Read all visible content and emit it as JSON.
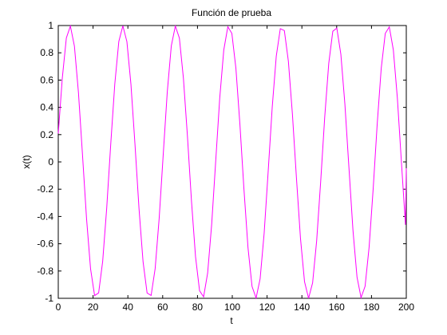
{
  "chart_data": {
    "type": "line",
    "title": "Función de prueba",
    "xlabel": "t",
    "ylabel": "x(t)",
    "xlim": [
      0,
      200
    ],
    "ylim": [
      -1,
      1
    ],
    "xticks": [
      0,
      20,
      40,
      60,
      80,
      100,
      120,
      140,
      160,
      180,
      200
    ],
    "xtick_labels": [
      "0",
      "20",
      "40",
      "60",
      "80",
      "100",
      "120",
      "140",
      "160",
      "180",
      "200"
    ],
    "yticks": [
      -1,
      -0.8,
      -0.6,
      -0.4,
      -0.2,
      0,
      0.2,
      0.4,
      0.6,
      0.8,
      1
    ],
    "ytick_labels": [
      "-1",
      "-0.8",
      "-0.6",
      "-0.4",
      "-0.2",
      "0",
      "0.2",
      "0.4",
      "0.6",
      "0.8",
      "1"
    ],
    "grid": false,
    "line_color": "#ff00ff",
    "series": [
      {
        "x": [
          0,
          2.32,
          4.64,
          6.96,
          9.28,
          11.6,
          13.92,
          16.24,
          18.56,
          20.88,
          23.2,
          25.52,
          27.84,
          30.16,
          32.48,
          34.8,
          37.12,
          39.44,
          41.76,
          44.08,
          46.4,
          48.72,
          51.04,
          53.36,
          55.68,
          58.0,
          60.32,
          62.64,
          64.96,
          67.28,
          69.6,
          71.92,
          74.24,
          76.56,
          78.88,
          81.2,
          83.52,
          85.84,
          88.16,
          90.48,
          92.8,
          95.12,
          97.44,
          99.76,
          102.08,
          104.4,
          106.72,
          109.04,
          111.36,
          113.68,
          116.0,
          118.32,
          120.64,
          122.96,
          125.28,
          127.6,
          129.92,
          132.24,
          134.56,
          136.88,
          139.2,
          141.52,
          143.84,
          146.16,
          148.48,
          150.8,
          153.12,
          155.44,
          157.76,
          160.08,
          162.4,
          164.72,
          167.04,
          169.36,
          171.68,
          174.0,
          176.32,
          178.64,
          180.96,
          183.28,
          185.6,
          187.92,
          190.24,
          192.56,
          194.88,
          197.2,
          199.52,
          200
        ],
        "y": [
          0.208,
          0.615,
          0.909,
          0.996,
          0.849,
          0.508,
          0.052,
          -0.414,
          -0.784,
          -0.98,
          -0.96,
          -0.729,
          -0.338,
          0.132,
          0.571,
          0.883,
          0.998,
          0.882,
          0.569,
          0.13,
          -0.342,
          -0.731,
          -0.961,
          -0.979,
          -0.782,
          -0.411,
          0.055,
          0.513,
          0.851,
          0.996,
          0.908,
          0.613,
          0.187,
          -0.288,
          -0.695,
          -0.945,
          -0.989,
          -0.815,
          -0.457,
          0.007,
          0.469,
          0.821,
          0.991,
          0.942,
          0.687,
          0.273,
          -0.203,
          -0.63,
          -0.913,
          -0.998,
          -0.857,
          -0.522,
          -0.067,
          0.402,
          0.775,
          0.977,
          0.963,
          0.738,
          0.35,
          -0.119,
          -0.562,
          -0.878,
          -0.999,
          -0.887,
          -0.58,
          -0.145,
          0.328,
          0.722,
          0.958,
          0.981,
          0.789,
          0.423,
          -0.042,
          -0.502,
          -0.844,
          -0.995,
          -0.912,
          -0.624,
          -0.199,
          0.277,
          0.687,
          0.942,
          0.99,
          0.821,
          0.466,
          -0.002,
          -0.461,
          -0.046
        ]
      }
    ]
  }
}
